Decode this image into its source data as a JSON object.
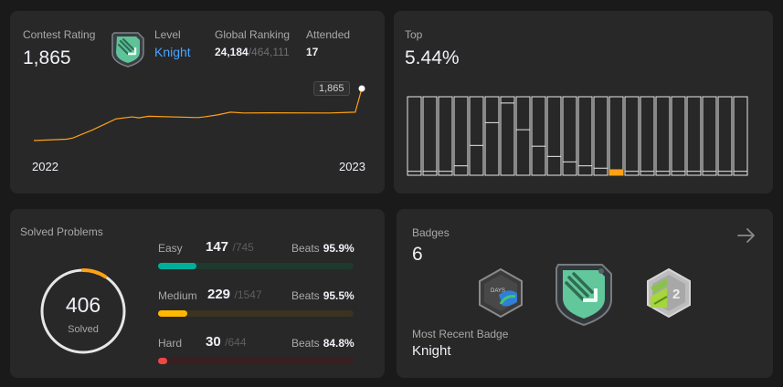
{
  "contest": {
    "rating_label": "Contest Rating",
    "rating_value": "1,865",
    "level_label": "Level",
    "level_value": "Knight",
    "global_label": "Global Ranking",
    "global_rank": "24,184",
    "global_total": "/464,111",
    "attended_label": "Attended",
    "attended_value": "17",
    "tooltip_value": "1,865",
    "year_start": "2022",
    "year_end": "2023",
    "line_color": "#ffa116"
  },
  "top": {
    "label": "Top",
    "value": "5.44%",
    "highlight_color": "#ffa116"
  },
  "chart_data": {
    "type": "bar",
    "title": "",
    "bar_values": [
      0.05,
      0.05,
      0.05,
      0.12,
      0.38,
      0.67,
      0.92,
      0.58,
      0.37,
      0.24,
      0.17,
      0.12,
      0.09,
      0.07,
      0.05,
      0.05,
      0.05,
      0.05,
      0.05,
      0.05,
      0.05,
      0.05
    ],
    "highlight_index": 13,
    "ylim": [
      0,
      1
    ]
  },
  "rating_history": {
    "points": [
      [
        0,
        1480
      ],
      [
        0.1,
        1490
      ],
      [
        0.12,
        1500
      ],
      [
        0.18,
        1560
      ],
      [
        0.25,
        1640
      ],
      [
        0.3,
        1655
      ],
      [
        0.32,
        1648
      ],
      [
        0.35,
        1660
      ],
      [
        0.5,
        1650
      ],
      [
        0.52,
        1655
      ],
      [
        0.56,
        1670
      ],
      [
        0.6,
        1690
      ],
      [
        0.64,
        1684
      ],
      [
        0.72,
        1685
      ],
      [
        0.9,
        1684
      ],
      [
        0.98,
        1690
      ],
      [
        1.0,
        1865
      ]
    ]
  },
  "solved": {
    "title": "Solved Problems",
    "total": "406",
    "total_label": "Solved",
    "ring_fraction": 0.09,
    "ring_color": "#ffa116",
    "rows": [
      {
        "label": "Easy",
        "count": "147",
        "total": "/745",
        "beats_label": "Beats",
        "beats": "95.9%",
        "fraction": 0.197,
        "fill": "#00af9b",
        "track": "#1e3a2e"
      },
      {
        "label": "Medium",
        "count": "229",
        "total": "/1547",
        "beats_label": "Beats",
        "beats": "95.5%",
        "fraction": 0.148,
        "fill": "#ffb800",
        "track": "#3a3320"
      },
      {
        "label": "Hard",
        "count": "30",
        "total": "/644",
        "beats_label": "Beats",
        "beats": "84.8%",
        "fraction": 0.047,
        "fill": "#ef4743",
        "track": "#3a1f22"
      }
    ]
  },
  "badges": {
    "title": "Badges",
    "count": "6",
    "recent_label": "Most Recent Badge",
    "recent_value": "Knight",
    "items": [
      "50-days-badge-icon",
      "knight-badge-icon",
      "annual-badge-icon"
    ],
    "badge_2_number": "2"
  }
}
